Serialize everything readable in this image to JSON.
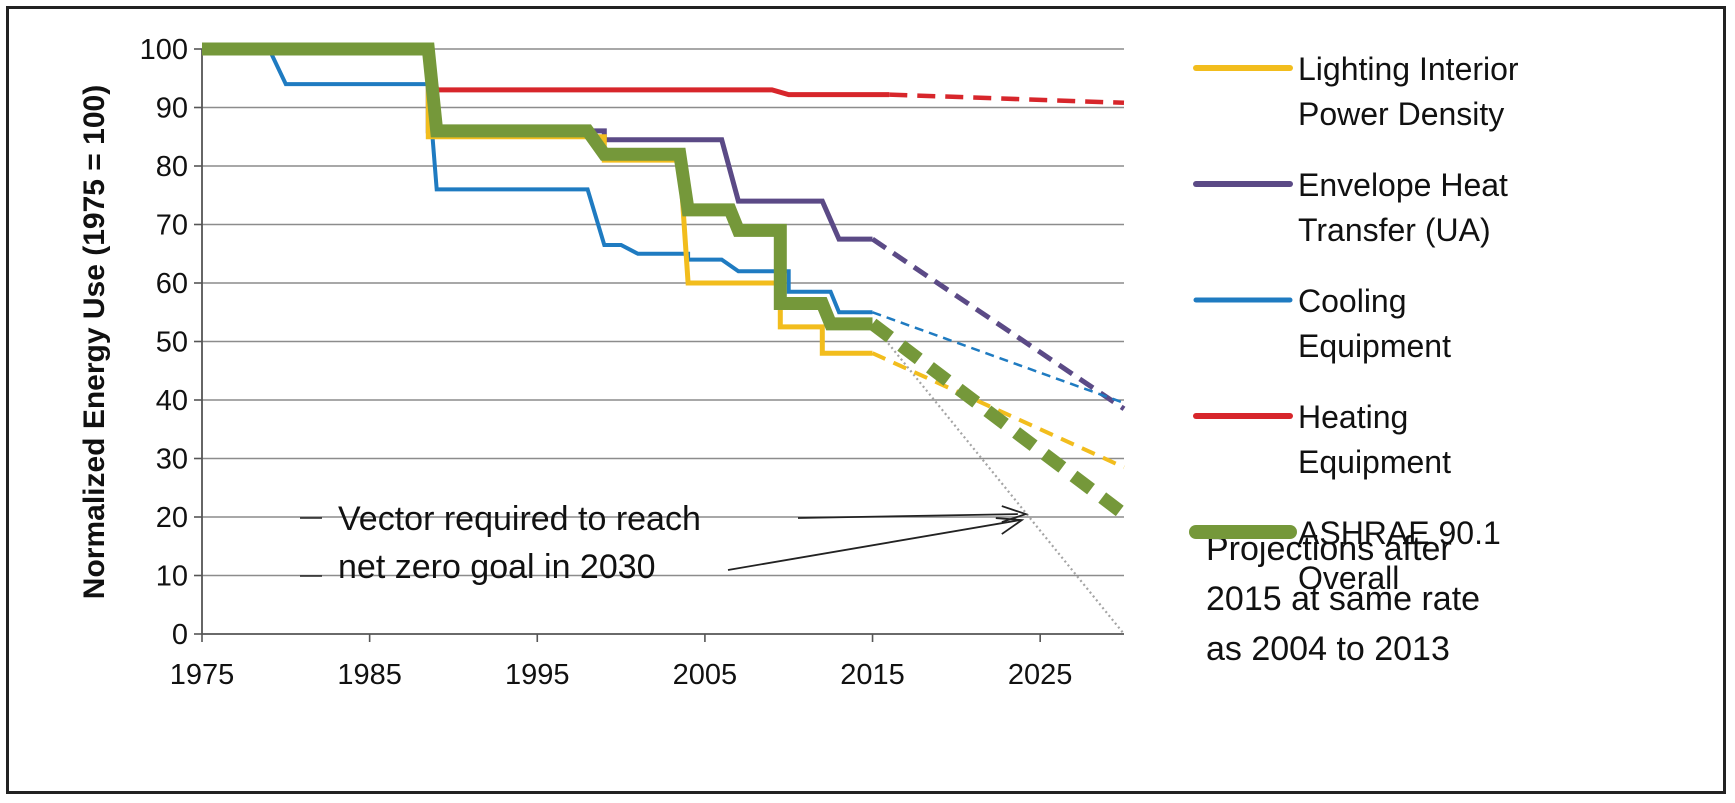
{
  "chart_data": {
    "type": "line",
    "title": "",
    "ylabel": "Normalized Energy Use (1975 = 100)",
    "xlabel": "",
    "xlim": [
      1975,
      2030
    ],
    "ylim": [
      0,
      100
    ],
    "x_ticks": [
      "1975",
      "1985",
      "1995",
      "2005",
      "2015",
      "2025"
    ],
    "y_ticks": [
      "0",
      "10",
      "20",
      "30",
      "40",
      "50",
      "60",
      "70",
      "80",
      "90",
      "100"
    ],
    "grid": "horizontal",
    "legend_position": "right",
    "series": [
      {
        "name": "Lighting Interior Power Density",
        "color": "#F2BD1D",
        "values": [
          [
            1975,
            100
          ],
          [
            1988.5,
            100
          ],
          [
            1988.5,
            85
          ],
          [
            1999,
            85
          ],
          [
            1999,
            81
          ],
          [
            2003.5,
            81
          ],
          [
            2004,
            60
          ],
          [
            2009.5,
            60
          ],
          [
            2009.5,
            52.5
          ],
          [
            2012,
            52.5
          ],
          [
            2012,
            48
          ],
          [
            2015,
            48
          ]
        ],
        "projection": [
          [
            2015,
            48
          ],
          [
            2030,
            28.5
          ]
        ]
      },
      {
        "name": "Envelope Heat Transfer (UA)",
        "color": "#5B4A86",
        "values": [
          [
            1975,
            100
          ],
          [
            1988.5,
            100
          ],
          [
            1988.5,
            86
          ],
          [
            1999,
            86
          ],
          [
            1999,
            84.5
          ],
          [
            2006,
            84.5
          ],
          [
            2007,
            74
          ],
          [
            2012,
            74
          ],
          [
            2013,
            67.5
          ],
          [
            2015,
            67.5
          ]
        ],
        "projection": [
          [
            2015,
            67.5
          ],
          [
            2030,
            38.5
          ]
        ]
      },
      {
        "name": "Cooling Equipment",
        "color": "#1F7BC1",
        "values": [
          [
            1975,
            100
          ],
          [
            1979,
            100
          ],
          [
            1980,
            94
          ],
          [
            1988.5,
            94
          ],
          [
            1989,
            76
          ],
          [
            1998,
            76
          ],
          [
            1999,
            66.5
          ],
          [
            2000,
            66.5
          ],
          [
            2001,
            65
          ],
          [
            2004,
            65
          ],
          [
            2004,
            64
          ],
          [
            2006,
            64
          ],
          [
            2007,
            62
          ],
          [
            2010,
            62
          ],
          [
            2010,
            58.5
          ],
          [
            2012.5,
            58.5
          ],
          [
            2013,
            55
          ],
          [
            2015,
            55
          ]
        ],
        "projection": [
          [
            2015,
            55
          ],
          [
            2030,
            39.5
          ]
        ]
      },
      {
        "name": "Heating Equipment",
        "color": "#D7262B",
        "values": [
          [
            1975,
            100
          ],
          [
            1988.5,
            100
          ],
          [
            1989,
            93
          ],
          [
            2009,
            93
          ],
          [
            2010,
            92.2
          ],
          [
            2016,
            92.2
          ]
        ],
        "projection": [
          [
            2016,
            92.2
          ],
          [
            2030,
            90.8
          ]
        ]
      },
      {
        "name": "ASHRAE 90.1 Overall",
        "color": "#75983A",
        "values": [
          [
            1975,
            100
          ],
          [
            1988.5,
            100
          ],
          [
            1989,
            86
          ],
          [
            1998,
            86
          ],
          [
            1999,
            82
          ],
          [
            2003.5,
            82
          ],
          [
            2004,
            72.5
          ],
          [
            2006.5,
            72.5
          ],
          [
            2007,
            69
          ],
          [
            2009.5,
            69
          ],
          [
            2009.5,
            56.5
          ],
          [
            2012,
            56.5
          ],
          [
            2012.5,
            53
          ],
          [
            2015,
            53
          ]
        ],
        "projection": [
          [
            2015,
            53
          ],
          [
            2030,
            20.5
          ]
        ]
      }
    ],
    "goal_vector": {
      "label": "Vector required to reach net zero goal in 2030",
      "points": [
        [
          2015,
          53
        ],
        [
          2030,
          0
        ]
      ],
      "color": "#A4A4A4",
      "arrow_target": [
        2024.5,
        20.5
      ]
    },
    "annotations": {
      "vector_line1": "Vector required  to reach",
      "vector_line2": "net zero  goal in 2030",
      "projection_line1": "Projections after",
      "projection_line2": "2015 at same rate",
      "projection_line3": "as 2004 to 2013"
    },
    "legend": [
      {
        "series_index": 0,
        "lines": [
          "Lighting Interior",
          "Power Density"
        ]
      },
      {
        "series_index": 1,
        "lines": [
          "Envelope Heat",
          "Transfer (UA)"
        ]
      },
      {
        "series_index": 2,
        "lines": [
          "Cooling",
          "Equipment"
        ]
      },
      {
        "series_index": 3,
        "lines": [
          "Heating",
          "Equipment"
        ]
      },
      {
        "series_index": 4,
        "lines": [
          "ASHRAE 90.1",
          "Overall"
        ]
      }
    ]
  }
}
